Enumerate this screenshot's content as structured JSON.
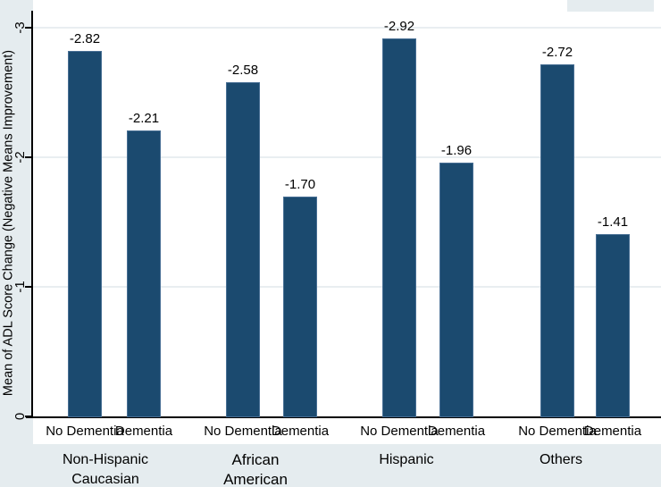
{
  "chart_data": {
    "type": "bar",
    "title": "",
    "xlabel": "",
    "ylabel": "Mean of ADL Score Change (Negative Means Improvement)",
    "y_axis_inverted": true,
    "ylim": [
      0,
      -3
    ],
    "yticks": [
      "0",
      "-1",
      "-2",
      "-3"
    ],
    "ytick_values": [
      0,
      -1,
      -2,
      -3
    ],
    "grid": "horizontal, light",
    "legend": "none",
    "bar_color": "#1b4a6f",
    "background_color": "#e5ecef",
    "plot_background_color": "#ffffff",
    "groups": [
      {
        "label_lines": [
          "Non-Hispanic",
          "Caucasian"
        ],
        "bars": [
          {
            "category": "No Dementia",
            "value": -2.82,
            "value_label": "-2.82"
          },
          {
            "category": "Dementia",
            "value": -2.21,
            "value_label": "-2.21"
          }
        ]
      },
      {
        "label_lines": [
          "African",
          "American"
        ],
        "bars": [
          {
            "category": "No Dementia",
            "value": -2.58,
            "value_label": "-2.58"
          },
          {
            "category": "Dementia",
            "value": -1.7,
            "value_label": "-1.70"
          }
        ]
      },
      {
        "label_lines": [
          "Hispanic"
        ],
        "bars": [
          {
            "category": "No Dementia",
            "value": -2.92,
            "value_label": "-2.92"
          },
          {
            "category": "Dementia",
            "value": -1.96,
            "value_label": "-1.96"
          }
        ]
      },
      {
        "label_lines": [
          "Others"
        ],
        "bars": [
          {
            "category": "No Dementia",
            "value": -2.72,
            "value_label": "-2.72"
          },
          {
            "category": "Dementia",
            "value": -1.41,
            "value_label": "-1.41"
          }
        ]
      }
    ]
  }
}
